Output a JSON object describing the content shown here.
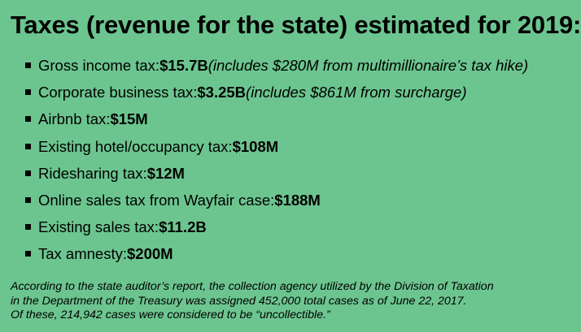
{
  "title": "Taxes (revenue for the state) estimated for 2019:",
  "items": [
    {
      "label": "Gross income tax: ",
      "amount": "$15.7B",
      "note": " (includes $280M from multimillionaire’s tax hike)"
    },
    {
      "label": "Corporate business tax: ",
      "amount": "$3.25B",
      "note": " (includes $861M from surcharge)"
    },
    {
      "label": "Airbnb tax: ",
      "amount": "$15M",
      "note": ""
    },
    {
      "label": "Existing hotel/occupancy tax: ",
      "amount": "$108M",
      "note": ""
    },
    {
      "label": "Ridesharing tax: ",
      "amount": "$12M",
      "note": ""
    },
    {
      "label": "Online sales tax from Wayfair case: ",
      "amount": "$188M",
      "note": ""
    },
    {
      "label": "Existing sales tax: ",
      "amount": "$11.2B",
      "note": ""
    },
    {
      "label": "Tax amnesty: ",
      "amount": "$200M",
      "note": ""
    }
  ],
  "footnote": {
    "line1": "According to the state auditor’s report, the collection agency utilized by the Division of Taxation",
    "line2": "in the Department of the Treasury was assigned 452,000 total cases as of June 22, 2017.",
    "line3": "Of these, 214,942 cases were considered to be “uncollectible.”"
  },
  "colors": {
    "background": "#6cc58f",
    "text": "#000000"
  }
}
